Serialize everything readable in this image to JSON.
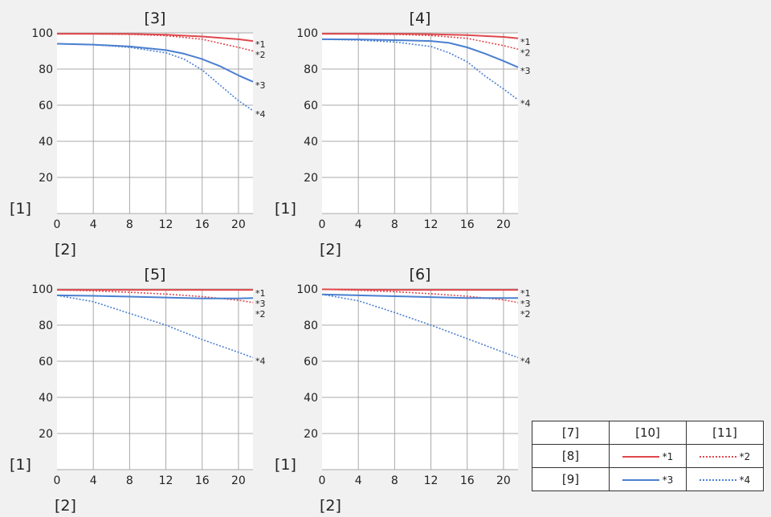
{
  "chart_data": [
    {
      "type": "line",
      "title": "[3]",
      "ylabel": "[1]",
      "xlabel": "[2]",
      "xlim": [
        0,
        21.6
      ],
      "ylim": [
        0,
        100
      ],
      "xticks": [
        "0",
        "4",
        "8",
        "12",
        "16",
        "20"
      ],
      "yticks": [
        "20",
        "40",
        "60",
        "80",
        "100"
      ],
      "series": [
        {
          "name": "*1",
          "x": [
            0,
            4,
            8,
            12,
            16,
            20,
            21.6
          ],
          "y": [
            99.5,
            99.5,
            99.4,
            99,
            98,
            96.5,
            95.5
          ]
        },
        {
          "name": "*2",
          "x": [
            0,
            4,
            8,
            12,
            16,
            20,
            21.6
          ],
          "y": [
            99.5,
            99.4,
            99.2,
            98.5,
            96.5,
            92,
            90
          ]
        },
        {
          "name": "*3",
          "x": [
            0,
            4,
            8,
            12,
            14,
            16,
            18,
            20,
            21.6
          ],
          "y": [
            94,
            93.5,
            92.5,
            90.5,
            88.5,
            85.5,
            81.5,
            76.5,
            73
          ]
        },
        {
          "name": "*4",
          "x": [
            0,
            4,
            8,
            12,
            14,
            16,
            18,
            20,
            21.6
          ],
          "y": [
            94,
            93.5,
            92,
            89,
            85.5,
            79.5,
            71,
            62.5,
            57
          ]
        }
      ]
    },
    {
      "type": "line",
      "title": "[4]",
      "ylabel": "[1]",
      "xlabel": "[2]",
      "xlim": [
        0,
        21.6
      ],
      "ylim": [
        0,
        100
      ],
      "xticks": [
        "0",
        "4",
        "8",
        "12",
        "16",
        "20"
      ],
      "yticks": [
        "20",
        "40",
        "60",
        "80",
        "100"
      ],
      "series": [
        {
          "name": "*1",
          "x": [
            0,
            4,
            8,
            12,
            16,
            20,
            21.6
          ],
          "y": [
            99.5,
            99.5,
            99.5,
            99.3,
            98.8,
            97.8,
            97
          ]
        },
        {
          "name": "*2",
          "x": [
            0,
            4,
            8,
            12,
            16,
            20,
            21.6
          ],
          "y": [
            99.5,
            99.4,
            99.2,
            98.6,
            97,
            93,
            91
          ]
        },
        {
          "name": "*3",
          "x": [
            0,
            4,
            8,
            12,
            14,
            16,
            18,
            20,
            21.6
          ],
          "y": [
            96.5,
            96.4,
            96,
            95.5,
            94.5,
            92,
            88.5,
            84.5,
            81
          ]
        },
        {
          "name": "*4",
          "x": [
            0,
            4,
            8,
            12,
            14,
            16,
            18,
            20,
            21.6
          ],
          "y": [
            96.5,
            96,
            95,
            92.5,
            89,
            84,
            76,
            69,
            63
          ]
        }
      ]
    },
    {
      "type": "line",
      "title": "[5]",
      "ylabel": "[1]",
      "xlabel": "[2]",
      "xlim": [
        0,
        21.6
      ],
      "ylim": [
        0,
        100
      ],
      "xticks": [
        "0",
        "4",
        "8",
        "12",
        "16",
        "20"
      ],
      "yticks": [
        "20",
        "40",
        "60",
        "80",
        "100"
      ],
      "series": [
        {
          "name": "*1",
          "x": [
            0,
            4,
            8,
            12,
            16,
            20,
            21.6
          ],
          "y": [
            99.5,
            99.5,
            99.5,
            99.5,
            99.5,
            99.5,
            99.5
          ]
        },
        {
          "name": "*2",
          "x": [
            0,
            4,
            8,
            12,
            16,
            20,
            21.6
          ],
          "y": [
            99.5,
            99,
            98.2,
            97.2,
            95.8,
            93.8,
            92.5
          ]
        },
        {
          "name": "*3",
          "x": [
            0,
            4,
            8,
            12,
            16,
            20,
            21.6
          ],
          "y": [
            96.5,
            96.2,
            95.8,
            95.3,
            94.8,
            94.8,
            95
          ]
        },
        {
          "name": "*4",
          "x": [
            0,
            4,
            8,
            12,
            16,
            20,
            21.6
          ],
          "y": [
            96.5,
            93,
            86.5,
            80,
            72,
            65,
            62
          ]
        }
      ]
    },
    {
      "type": "line",
      "title": "[6]",
      "ylabel": "[1]",
      "xlabel": "[2]",
      "xlim": [
        0,
        21.6
      ],
      "ylim": [
        0,
        100
      ],
      "xticks": [
        "0",
        "4",
        "8",
        "12",
        "16",
        "20"
      ],
      "yticks": [
        "20",
        "40",
        "60",
        "80",
        "100"
      ],
      "series": [
        {
          "name": "*1",
          "x": [
            0,
            4,
            8,
            12,
            16,
            20,
            21.6
          ],
          "y": [
            99.8,
            99.6,
            99.5,
            99.5,
            99.5,
            99.5,
            99.5
          ]
        },
        {
          "name": "*2",
          "x": [
            0,
            4,
            8,
            12,
            16,
            20,
            21.6
          ],
          "y": [
            99.8,
            99.3,
            98.5,
            97.4,
            96,
            94,
            92.5
          ]
        },
        {
          "name": "*3",
          "x": [
            0,
            4,
            8,
            12,
            16,
            20,
            21.6
          ],
          "y": [
            97,
            96.5,
            96,
            95.5,
            95,
            95,
            95
          ]
        },
        {
          "name": "*4",
          "x": [
            0,
            4,
            8,
            12,
            16,
            20,
            21.6
          ],
          "y": [
            97,
            93.5,
            87,
            80,
            72.5,
            65,
            62
          ]
        }
      ]
    }
  ],
  "series_styles": {
    "*1": {
      "color": "#e0474c",
      "dash": "solid"
    },
    "*2": {
      "color": "#e0474c",
      "dash": "dotted"
    },
    "*3": {
      "color": "#4a7fd0",
      "dash": "solid"
    },
    "*4": {
      "color": "#4a7fd0",
      "dash": "dotted"
    }
  },
  "legend": {
    "header": [
      "[7]",
      "[10]",
      "[11]"
    ],
    "rows": [
      {
        "label": "[8]",
        "solid": "*1",
        "dotted": "*2"
      },
      {
        "label": "[9]",
        "solid": "*3",
        "dotted": "*4"
      }
    ]
  },
  "colors": {
    "grid": "#a9a9a9",
    "plot_bg": "#ffffff",
    "page_bg": "#f1f1f1"
  }
}
